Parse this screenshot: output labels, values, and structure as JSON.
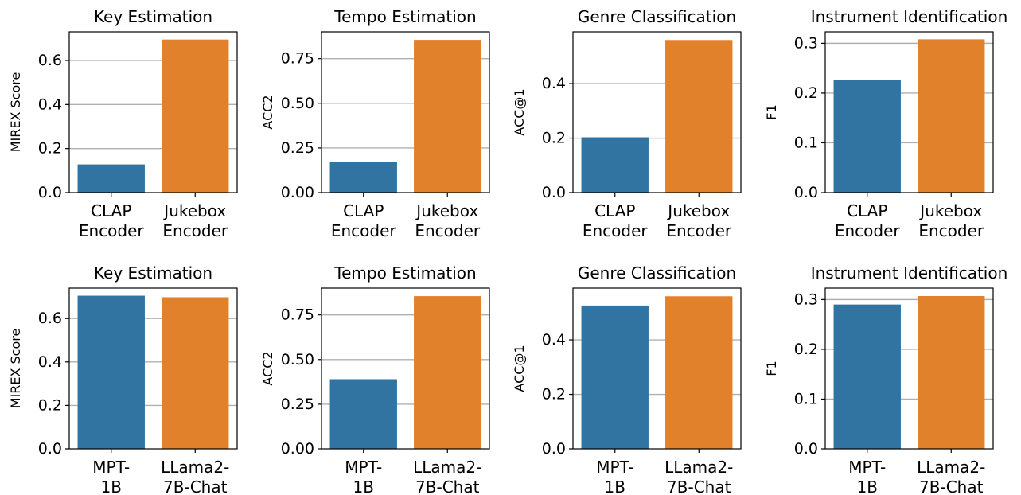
{
  "figure": {
    "colors": {
      "bar_a": "#3274a1",
      "bar_b": "#e1812c",
      "grid": "#b0b0b0",
      "axis": "#000000"
    }
  },
  "chart_data": [
    {
      "type": "bar",
      "title": "Key Estimation",
      "xlabel": "",
      "ylabel": "MIREX Score",
      "categories": [
        "CLAP\nEncoder",
        "Jukebox\nEncoder"
      ],
      "values": [
        0.128,
        0.695
      ],
      "ylim": [
        0,
        0.73
      ],
      "yticks": [
        0.0,
        0.2,
        0.4,
        0.6
      ],
      "ytick_labels": [
        "0.0",
        "0.2",
        "0.4",
        "0.6"
      ],
      "grid": true
    },
    {
      "type": "bar",
      "title": "Tempo Estimation",
      "xlabel": "",
      "ylabel": "ACC2",
      "categories": [
        "CLAP\nEncoder",
        "Jukebox\nEncoder"
      ],
      "values": [
        0.173,
        0.855
      ],
      "ylim": [
        0,
        0.9
      ],
      "yticks": [
        0.0,
        0.25,
        0.5,
        0.75
      ],
      "ytick_labels": [
        "0.00",
        "0.25",
        "0.50",
        "0.75"
      ],
      "grid": true
    },
    {
      "type": "bar",
      "title": "Genre Classification",
      "xlabel": "",
      "ylabel": "ACC@1",
      "categories": [
        "CLAP\nEncoder",
        "Jukebox\nEncoder"
      ],
      "values": [
        0.203,
        0.56
      ],
      "ylim": [
        0,
        0.59
      ],
      "yticks": [
        0.0,
        0.2,
        0.4
      ],
      "ytick_labels": [
        "0.0",
        "0.2",
        "0.4"
      ],
      "grid": true
    },
    {
      "type": "bar",
      "title": "Instrument Identification",
      "xlabel": "",
      "ylabel": "F1",
      "categories": [
        "CLAP\nEncoder",
        "Jukebox\nEncoder"
      ],
      "values": [
        0.227,
        0.308
      ],
      "ylim": [
        0,
        0.323
      ],
      "yticks": [
        0.0,
        0.1,
        0.2,
        0.3
      ],
      "ytick_labels": [
        "0.0",
        "0.1",
        "0.2",
        "0.3"
      ],
      "grid": true
    },
    {
      "type": "bar",
      "title": "Key Estimation",
      "xlabel": "",
      "ylabel": "MIREX Score",
      "categories": [
        "MPT-\n1B",
        "LLama2-\n7B-Chat"
      ],
      "values": [
        0.705,
        0.698
      ],
      "ylim": [
        0,
        0.74
      ],
      "yticks": [
        0.0,
        0.2,
        0.4,
        0.6
      ],
      "ytick_labels": [
        "0.0",
        "0.2",
        "0.4",
        "0.6"
      ],
      "grid": true
    },
    {
      "type": "bar",
      "title": "Tempo Estimation",
      "xlabel": "",
      "ylabel": "ACC2",
      "categories": [
        "MPT-\n1B",
        "LLama2-\n7B-Chat"
      ],
      "values": [
        0.39,
        0.855
      ],
      "ylim": [
        0,
        0.9
      ],
      "yticks": [
        0.0,
        0.25,
        0.5,
        0.75
      ],
      "ytick_labels": [
        "0.00",
        "0.25",
        "0.50",
        "0.75"
      ],
      "grid": true
    },
    {
      "type": "bar",
      "title": "Genre Classification",
      "xlabel": "",
      "ylabel": "ACC@1",
      "categories": [
        "MPT-\n1B",
        "LLama2-\n7B-Chat"
      ],
      "values": [
        0.526,
        0.56
      ],
      "ylim": [
        0,
        0.59
      ],
      "yticks": [
        0.0,
        0.2,
        0.4
      ],
      "ytick_labels": [
        "0.0",
        "0.2",
        "0.4"
      ],
      "grid": true
    },
    {
      "type": "bar",
      "title": "Instrument Identification",
      "xlabel": "",
      "ylabel": "F1",
      "categories": [
        "MPT-\n1B",
        "LLama2-\n7B-Chat"
      ],
      "values": [
        0.29,
        0.307
      ],
      "ylim": [
        0,
        0.323
      ],
      "yticks": [
        0.0,
        0.1,
        0.2,
        0.3
      ],
      "ytick_labels": [
        "0.0",
        "0.1",
        "0.2",
        "0.3"
      ],
      "grid": true
    }
  ]
}
